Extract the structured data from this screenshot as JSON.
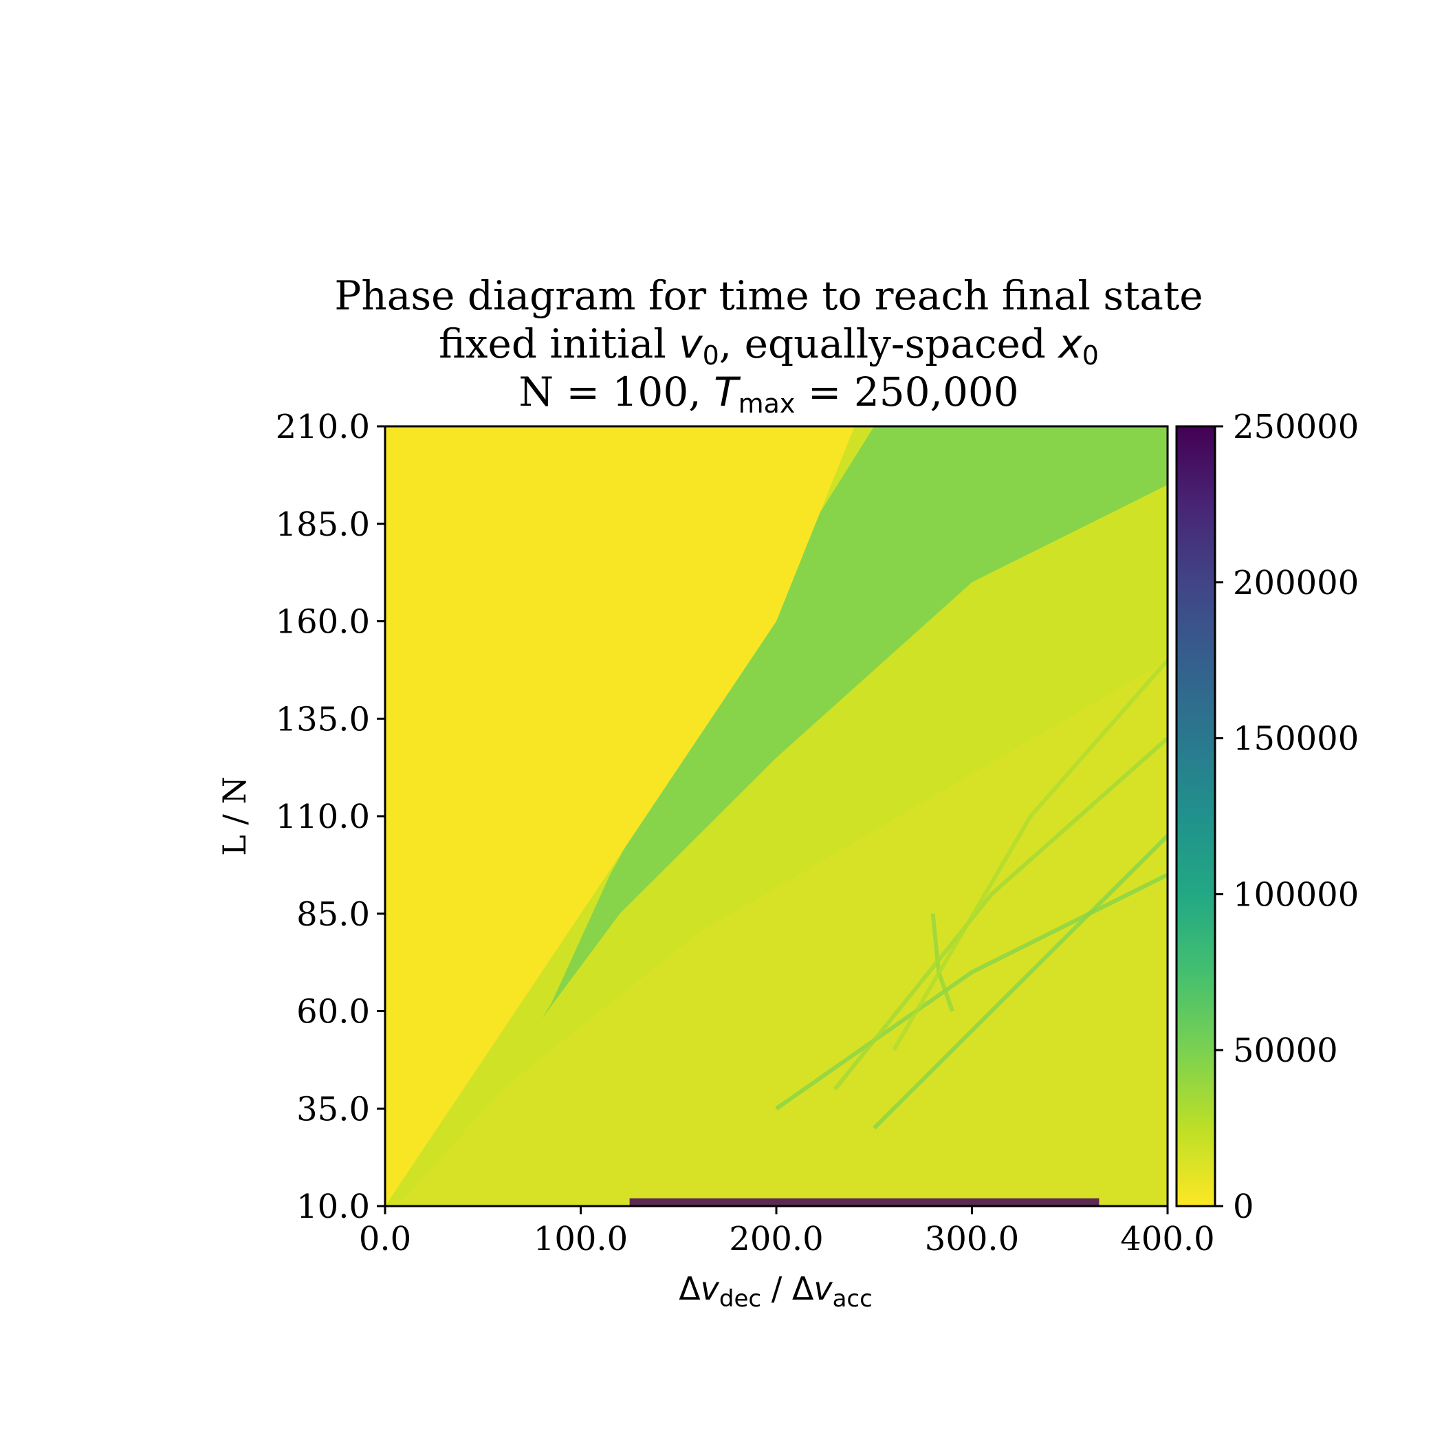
{
  "chart_data": {
    "type": "heatmap",
    "title_lines": [
      "Phase diagram for time to reach final state",
      "fixed initial v0, equally-spaced x0",
      "N = 100, Tmax = 250,000"
    ],
    "title": {
      "line1": "Phase diagram for time to reach final state",
      "line2": {
        "pre": "fixed initial ",
        "v": "v",
        "v_sub": "0",
        "mid": ", equally-spaced ",
        "x": "x",
        "x_sub": "0"
      },
      "line3": {
        "pre": "N = 100, ",
        "T": "T",
        "T_sub": "max",
        "post": " = 250,000"
      }
    },
    "xlabel": {
      "delta1": "Δ",
      "v1": "v",
      "sub1": "dec",
      "sep": " / ",
      "delta2": "Δ",
      "v2": "v",
      "sub2": "acc"
    },
    "ylabel": "L / N",
    "xlim": [
      0,
      400
    ],
    "ylim": [
      10,
      210
    ],
    "x_ticks": [
      "0.0",
      "100.0",
      "200.0",
      "300.0",
      "400.0"
    ],
    "x_tick_values": [
      0,
      100,
      200,
      300,
      400
    ],
    "y_ticks": [
      "10.0",
      "35.0",
      "60.0",
      "85.0",
      "110.0",
      "135.0",
      "160.0",
      "185.0",
      "210.0"
    ],
    "y_tick_values": [
      10,
      35,
      60,
      85,
      110,
      135,
      160,
      185,
      210
    ],
    "colorbar": {
      "colormap": "viridis_r",
      "range": [
        0,
        250000
      ],
      "ticks": [
        "0",
        "50000",
        "100000",
        "150000",
        "200000",
        "250000"
      ],
      "tick_values": [
        0,
        50000,
        100000,
        150000,
        200000,
        250000
      ]
    },
    "regions": [
      {
        "name": "fast-region",
        "value": 2000,
        "boundary_x_at_y": [
          [
            0,
            10
          ],
          [
            100,
            85
          ],
          [
            200,
            160
          ],
          [
            240,
            210
          ]
        ]
      },
      {
        "name": "light-green-strip",
        "value": 20000
      },
      {
        "name": "green-band",
        "value": 50000,
        "boundary_x_at_y": [
          [
            130,
            100
          ],
          [
            200,
            160
          ],
          [
            270,
            210
          ]
        ]
      },
      {
        "name": "lower-right-region",
        "value": 15000
      }
    ],
    "line_features": [
      {
        "value": 45000,
        "points": [
          [
            200,
            35
          ],
          [
            300,
            70
          ],
          [
            400,
            95
          ]
        ]
      },
      {
        "value": 45000,
        "points": [
          [
            250,
            30
          ],
          [
            330,
            70
          ],
          [
            400,
            105
          ]
        ]
      },
      {
        "value": 40000,
        "points": [
          [
            280,
            85
          ],
          [
            283,
            70
          ],
          [
            290,
            60
          ]
        ]
      },
      {
        "value": 35000,
        "points": [
          [
            230,
            40
          ],
          [
            310,
            90
          ],
          [
            400,
            130
          ]
        ]
      },
      {
        "value": 30000,
        "points": [
          [
            260,
            50
          ],
          [
            330,
            110
          ],
          [
            400,
            150
          ]
        ]
      }
    ],
    "bottom_strip": {
      "value": 245000,
      "x_range": [
        125,
        365
      ],
      "y": [
        10,
        12
      ]
    }
  }
}
